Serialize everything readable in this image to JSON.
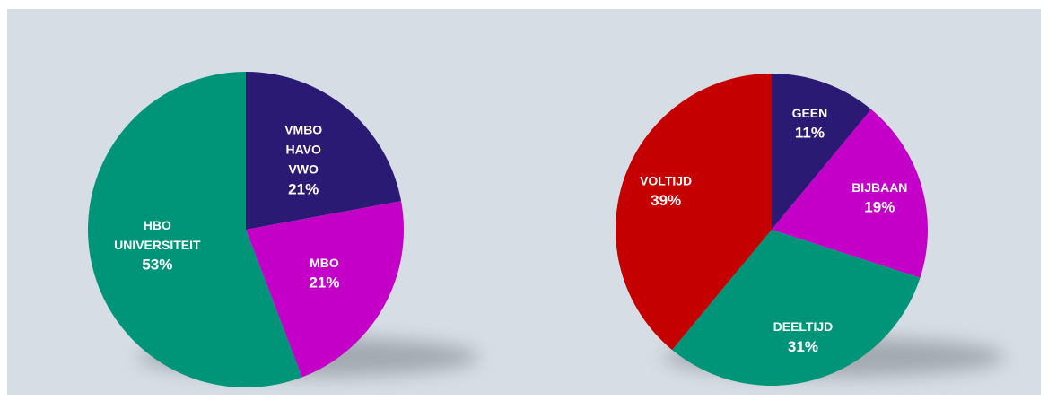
{
  "chart_data": [
    {
      "type": "pie",
      "categories": [
        [
          "VMBO",
          "HAVO",
          "VWO"
        ],
        [
          "MBO"
        ],
        [
          "HBO",
          "UNIVERSITEIT"
        ]
      ],
      "values": [
        21,
        21,
        53
      ],
      "value_labels": [
        "21%",
        "21%",
        "53%"
      ],
      "colors": [
        "#2b1a74",
        "#c400c8",
        "#009479"
      ]
    },
    {
      "type": "pie",
      "categories": [
        [
          "GEEN"
        ],
        [
          "BIJBAAN"
        ],
        [
          "DEELTIJD"
        ],
        [
          "VOLTIJD"
        ]
      ],
      "values": [
        11,
        19,
        31,
        39
      ],
      "value_labels": [
        "11%",
        "19%",
        "31%",
        "39%"
      ],
      "colors": [
        "#2b1a74",
        "#c400c8",
        "#009479",
        "#c40000"
      ]
    }
  ]
}
